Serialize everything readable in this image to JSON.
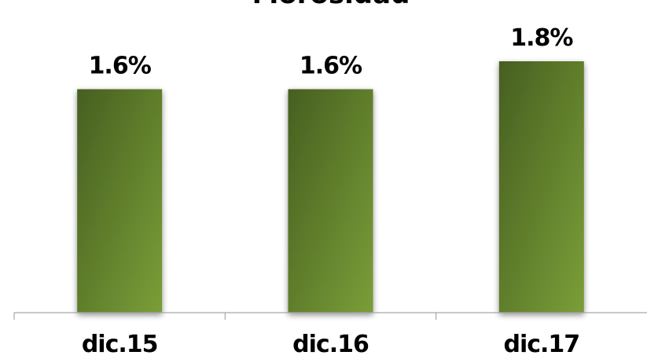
{
  "chart_data": {
    "type": "bar",
    "title": "Morosidad",
    "categories": [
      "dic.15",
      "dic.16",
      "dic.17"
    ],
    "values": [
      1.6,
      1.6,
      1.8
    ],
    "data_labels": [
      "1.6%",
      "1.6%",
      "1.8%"
    ],
    "xlabel": "",
    "ylabel": "",
    "ylim": [
      0,
      2.07
    ],
    "grid": false,
    "legend": "none",
    "colors": {
      "bar_dark": "#465f20",
      "bar_light": "#7a9e38",
      "axis": "#a6a6a6",
      "text": "#000000"
    }
  }
}
